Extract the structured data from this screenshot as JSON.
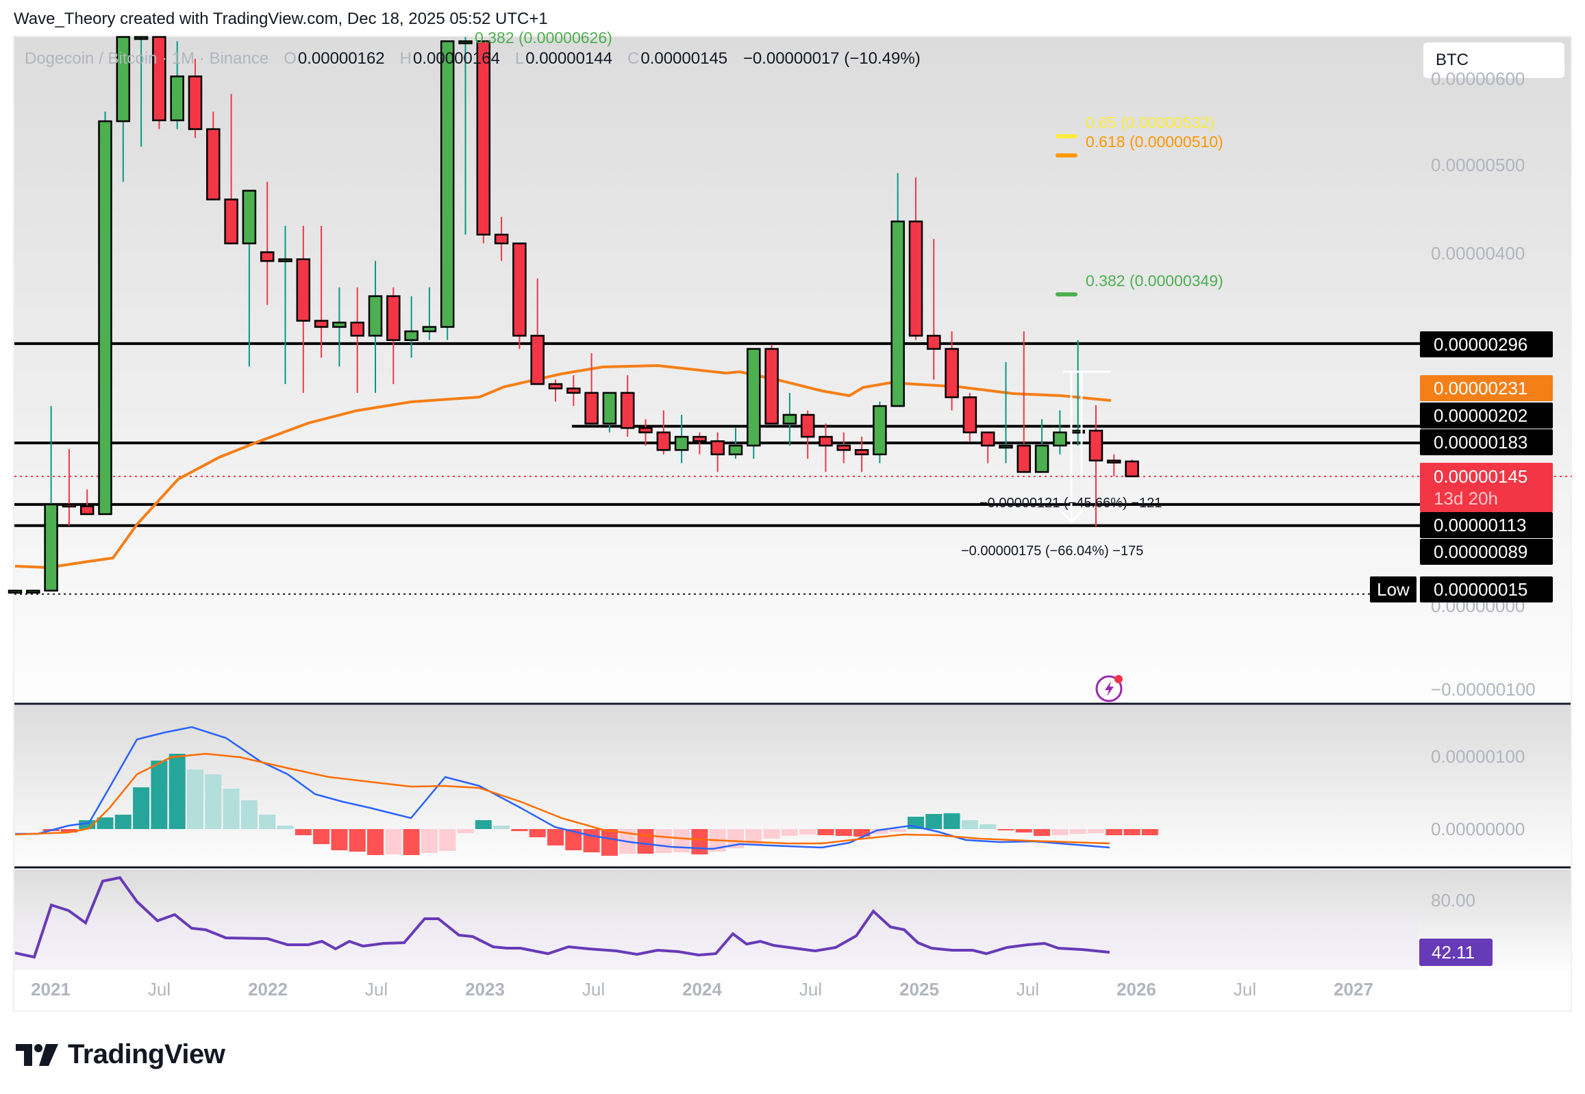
{
  "credit": "Wave_Theory created with TradingView.com, Dec 18, 2025 05:52 UTC+1",
  "legend": {
    "symbol": "Dogecoin / Bitcoin · 1M · Binance",
    "o_label": "O",
    "open": "0.00000162",
    "h_label": "H",
    "high": "0.00000164",
    "l_label": "L",
    "low": "0.00000144",
    "c_label": "C",
    "close": "0.00000145",
    "change": "−0.00000017 (−10.49%)"
  },
  "currency_button": "BTC",
  "fib_levels": [
    {
      "label": "0.382 (0.00000626)",
      "color": "#4caf50"
    },
    {
      "label": "0.65 (0.00000532)",
      "color": "#ffeb3b"
    },
    {
      "label": "0.618 (0.00000510)",
      "color": "#ff9800"
    },
    {
      "label": "0.382 (0.00000349)",
      "color": "#4caf50"
    }
  ],
  "price_axis": {
    "ticks": [
      "0.00000600",
      "0.00000500",
      "0.00000400",
      "0.00000000",
      "−0.00000100"
    ],
    "labels": [
      {
        "value": "0.00000296",
        "bg": "#000000"
      },
      {
        "value": "0.00000231",
        "bg": "#f57f17"
      },
      {
        "value": "0.00000202",
        "bg": "#000000"
      },
      {
        "value": "0.00000183",
        "bg": "#000000"
      },
      {
        "value": "0.00000145",
        "sub": "13d 20h",
        "bg": "#f23645"
      },
      {
        "value": "0.00000113",
        "bg": "#000000"
      },
      {
        "value": "0.00000089",
        "bg": "#000000"
      },
      {
        "value": "0.00000015",
        "bg": "#000000"
      }
    ],
    "low_tag": "Low"
  },
  "measurements": [
    {
      "text": "−0.00000121 (−45.66%) −121"
    },
    {
      "text": "−0.00000175 (−66.04%) −175"
    }
  ],
  "macd_axis": {
    "ticks": [
      "0.00000100",
      "0.00000000"
    ]
  },
  "rsi_axis": {
    "tick": "80.00",
    "value": "42.11"
  },
  "time_axis": [
    {
      "label": "2021",
      "year": true
    },
    {
      "label": "Jul",
      "year": false
    },
    {
      "label": "2022",
      "year": true
    },
    {
      "label": "Jul",
      "year": false
    },
    {
      "label": "2023",
      "year": true
    },
    {
      "label": "Jul",
      "year": false
    },
    {
      "label": "2024",
      "year": true
    },
    {
      "label": "Jul",
      "year": false
    },
    {
      "label": "2025",
      "year": true
    },
    {
      "label": "Jul",
      "year": false
    },
    {
      "label": "2026",
      "year": true
    },
    {
      "label": "Jul",
      "year": false
    },
    {
      "label": "2027",
      "year": true
    }
  ],
  "logo_text": "TradingView",
  "colors": {
    "up": "#4caf50",
    "down": "#f23645",
    "ma": "#f57f17",
    "macd": "#2962ff",
    "signal": "#ff6d00",
    "rsi": "#673ab7",
    "hist_up_strong": "#26a69a",
    "hist_up_weak": "#b2dfdb",
    "hist_dn_strong": "#ff5252",
    "hist_dn_weak": "#ffcdd2"
  },
  "chart_data": {
    "type": "candlestick",
    "title": "Dogecoin / Bitcoin · 1M · Binance",
    "xlabel": "",
    "ylabel": "BTC",
    "ylim": [
      -1e-06,
      6.5e-06
    ],
    "start_month": "2020-11",
    "candles_sats": [
      [
        15,
        16,
        15,
        15
      ],
      [
        15,
        16,
        15,
        15
      ],
      [
        15,
        225,
        15,
        113
      ],
      [
        113,
        176,
        89,
        111
      ],
      [
        111,
        130,
        101,
        102
      ],
      [
        102,
        560,
        102,
        549
      ],
      [
        549,
        700,
        480,
        660
      ],
      [
        660,
        720,
        520,
        690
      ],
      [
        690,
        720,
        540,
        550
      ],
      [
        550,
        640,
        540,
        600
      ],
      [
        600,
        620,
        530,
        540
      ],
      [
        540,
        560,
        470,
        460
      ],
      [
        460,
        580,
        430,
        410
      ],
      [
        410,
        470,
        270,
        470
      ],
      [
        400,
        480,
        340,
        390
      ],
      [
        390,
        430,
        250,
        392
      ],
      [
        392,
        430,
        240,
        322
      ],
      [
        322,
        430,
        280,
        315
      ],
      [
        315,
        360,
        270,
        320
      ],
      [
        320,
        360,
        240,
        305
      ],
      [
        305,
        390,
        240,
        350
      ],
      [
        350,
        360,
        250,
        300
      ],
      [
        300,
        350,
        280,
        310
      ],
      [
        310,
        360,
        300,
        315
      ],
      [
        315,
        640,
        300,
        640
      ],
      [
        640,
        650,
        420,
        640
      ],
      [
        640,
        460,
        410,
        420
      ],
      [
        420,
        440,
        390,
        410
      ],
      [
        410,
        400,
        290,
        305
      ],
      [
        305,
        370,
        280,
        250
      ],
      [
        250,
        255,
        230,
        245
      ],
      [
        245,
        260,
        225,
        240
      ],
      [
        240,
        285,
        215,
        205
      ],
      [
        205,
        240,
        195,
        240
      ],
      [
        240,
        260,
        190,
        200
      ],
      [
        200,
        210,
        180,
        195
      ],
      [
        195,
        220,
        170,
        175
      ],
      [
        175,
        215,
        160,
        190
      ],
      [
        190,
        195,
        170,
        185
      ],
      [
        185,
        195,
        150,
        170
      ],
      [
        170,
        200,
        165,
        180
      ],
      [
        180,
        290,
        165,
        290
      ],
      [
        290,
        295,
        205,
        205
      ],
      [
        205,
        240,
        180,
        215
      ],
      [
        215,
        220,
        165,
        190
      ],
      [
        190,
        205,
        150,
        180
      ],
      [
        180,
        195,
        160,
        175
      ],
      [
        175,
        190,
        150,
        170
      ],
      [
        170,
        230,
        160,
        225
      ],
      [
        225,
        490,
        225,
        435
      ],
      [
        435,
        485,
        300,
        305
      ],
      [
        305,
        415,
        255,
        290
      ],
      [
        290,
        310,
        220,
        235
      ],
      [
        235,
        240,
        185,
        195
      ],
      [
        195,
        190,
        160,
        180
      ],
      [
        180,
        275,
        160,
        180
      ],
      [
        180,
        310,
        150,
        150
      ],
      [
        150,
        210,
        160,
        180
      ],
      [
        180,
        220,
        170,
        195
      ],
      [
        195,
        300,
        180,
        197
      ],
      [
        197,
        226,
        88,
        163
      ],
      [
        163,
        170,
        145,
        162
      ],
      [
        162,
        164,
        144,
        145
      ]
    ],
    "ma_sats_note": "orange moving average line",
    "support_resistance_sats": [
      296,
      202,
      183,
      113,
      89
    ],
    "rsi": {
      "overbought": 80,
      "oversold": 20,
      "last": 42.11
    }
  }
}
